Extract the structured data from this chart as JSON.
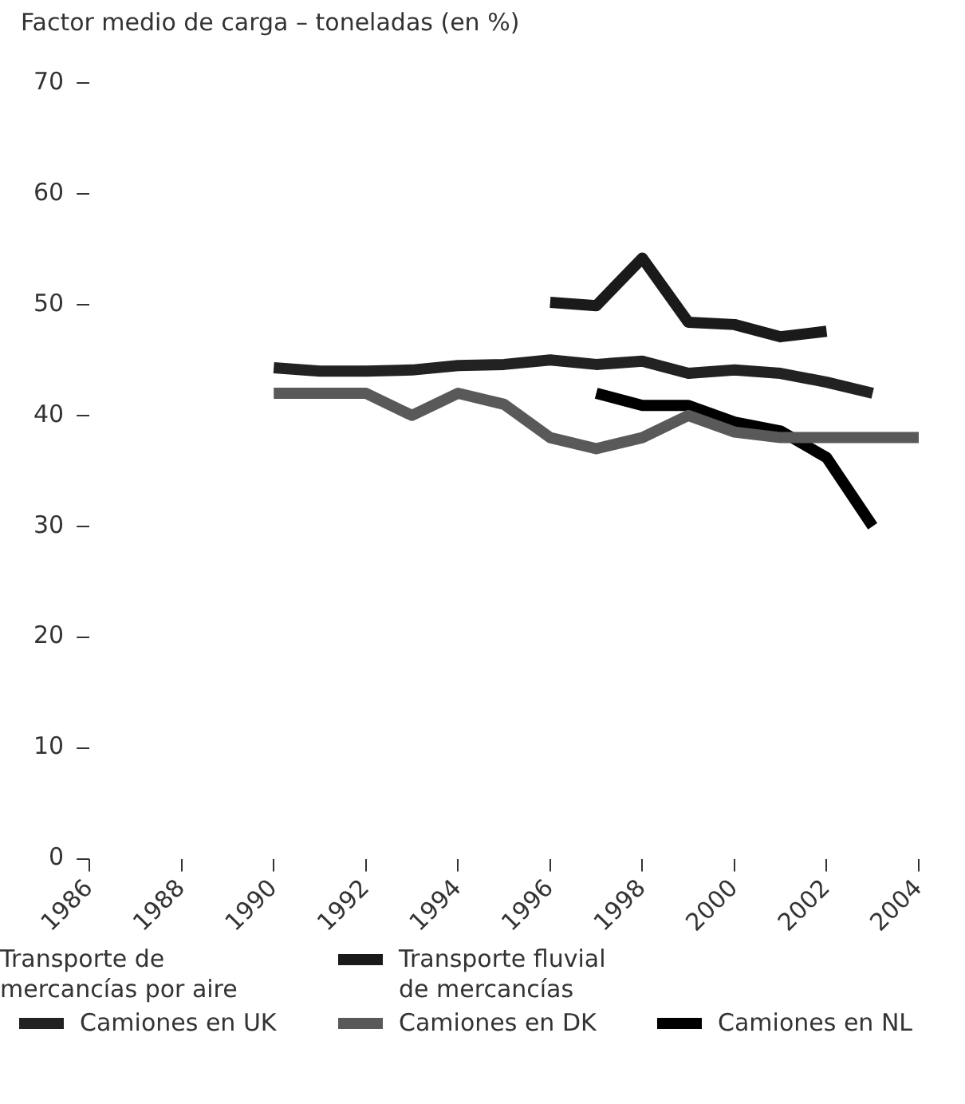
{
  "chart_data": {
    "type": "line",
    "title": "Factor medio de carga – toneladas (en %)",
    "x": [
      1990,
      1991,
      1992,
      1993,
      1994,
      1995,
      1996,
      1997,
      1998,
      1999,
      2000,
      2001,
      2002,
      2003,
      2004
    ],
    "series": [
      {
        "name": "Transporte de mercancías por aire",
        "values": [
          null,
          null,
          null,
          null,
          null,
          null,
          null,
          null,
          null,
          null,
          null,
          null,
          null,
          null,
          null
        ]
      },
      {
        "name": "Transporte fluvial de mercancías",
        "color": "#1a1a1a",
        "values": [
          null,
          null,
          null,
          null,
          null,
          null,
          50.2,
          49.9,
          54.2,
          48.4,
          48.2,
          47.1,
          47.6,
          null,
          null
        ]
      },
      {
        "name": "Camiones en UK",
        "color": "#222222",
        "values": [
          44.3,
          44.0,
          44.0,
          44.1,
          44.5,
          44.6,
          45.0,
          44.6,
          44.9,
          43.8,
          44.1,
          43.8,
          43.0,
          42.0,
          null
        ]
      },
      {
        "name": "Camiones en DK",
        "color": "#595959",
        "values": [
          42,
          42,
          42,
          40,
          42,
          41,
          38,
          37,
          38,
          40,
          38.5,
          38,
          38,
          38,
          38
        ]
      },
      {
        "name": "Camiones en NL",
        "color": "#000000",
        "values": [
          null,
          null,
          null,
          null,
          null,
          null,
          null,
          42.0,
          40.9,
          40.9,
          39.4,
          38.6,
          36.2,
          30.0,
          null
        ]
      }
    ],
    "xlim": [
      1986,
      2004
    ],
    "xticks": [
      1986,
      1988,
      1990,
      1992,
      1994,
      1996,
      1998,
      2000,
      2002,
      2004
    ],
    "ylim": [
      0,
      70
    ],
    "yticks": [
      0,
      10,
      20,
      30,
      40,
      50,
      60,
      70
    ],
    "grid": false,
    "legend": "bottom",
    "marker": "none",
    "line_style": "solid"
  }
}
